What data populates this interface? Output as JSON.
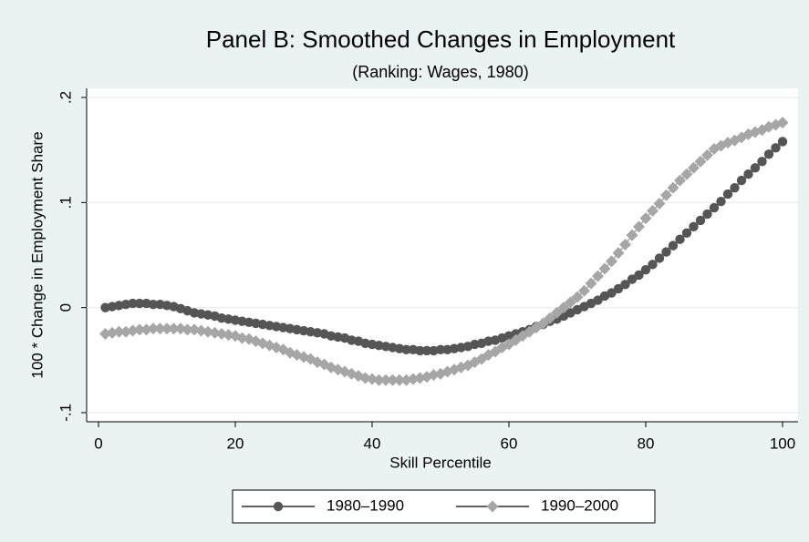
{
  "chart_data": {
    "type": "line",
    "title": "Panel B: Smoothed Changes in Employment",
    "subtitle": "(Ranking: Wages, 1980)",
    "x_label": "Skill Percentile",
    "y_label": "100 * Change in Employment Share",
    "x": [
      1,
      2,
      3,
      4,
      5,
      6,
      7,
      8,
      9,
      10,
      11,
      12,
      13,
      14,
      15,
      16,
      17,
      18,
      19,
      20,
      21,
      22,
      23,
      24,
      25,
      26,
      27,
      28,
      29,
      30,
      31,
      32,
      33,
      34,
      35,
      36,
      37,
      38,
      39,
      40,
      41,
      42,
      43,
      44,
      45,
      46,
      47,
      48,
      49,
      50,
      51,
      52,
      53,
      54,
      55,
      56,
      57,
      58,
      59,
      60,
      61,
      62,
      63,
      64,
      65,
      66,
      67,
      68,
      69,
      70,
      71,
      72,
      73,
      74,
      75,
      76,
      77,
      78,
      79,
      80,
      81,
      82,
      83,
      84,
      85,
      86,
      87,
      88,
      89,
      90,
      91,
      92,
      93,
      94,
      95,
      96,
      97,
      98,
      99,
      100
    ],
    "series": [
      {
        "name": "1980–1990",
        "color": "#555555",
        "marker": "circle",
        "values": [
          0,
          0.001,
          0.002,
          0.003,
          0.004,
          0.004,
          0.004,
          0.003,
          0.003,
          0.002,
          0.001,
          -0.001,
          -0.003,
          -0.005,
          -0.006,
          -0.007,
          -0.008,
          -0.01,
          -0.011,
          -0.012,
          -0.013,
          -0.014,
          -0.015,
          -0.016,
          -0.017,
          -0.018,
          -0.019,
          -0.02,
          -0.021,
          -0.022,
          -0.023,
          -0.024,
          -0.025,
          -0.027,
          -0.028,
          -0.029,
          -0.031,
          -0.032,
          -0.034,
          -0.035,
          -0.036,
          -0.037,
          -0.038,
          -0.039,
          -0.04,
          -0.04,
          -0.041,
          -0.041,
          -0.041,
          -0.04,
          -0.04,
          -0.039,
          -0.038,
          -0.037,
          -0.035,
          -0.034,
          -0.032,
          -0.031,
          -0.029,
          -0.027,
          -0.025,
          -0.023,
          -0.021,
          -0.018,
          -0.016,
          -0.013,
          -0.011,
          -0.008,
          -0.005,
          -0.002,
          0.001,
          0.004,
          0.007,
          0.011,
          0.014,
          0.018,
          0.022,
          0.027,
          0.031,
          0.036,
          0.041,
          0.047,
          0.053,
          0.059,
          0.065,
          0.071,
          0.077,
          0.083,
          0.089,
          0.095,
          0.101,
          0.108,
          0.114,
          0.121,
          0.127,
          0.133,
          0.139,
          0.146,
          0.152,
          0.158
        ]
      },
      {
        "name": "1990–2000",
        "color": "#a6a6a6",
        "marker": "diamond",
        "values": [
          -0.025,
          -0.024,
          -0.023,
          -0.023,
          -0.022,
          -0.021,
          -0.021,
          -0.02,
          -0.02,
          -0.02,
          -0.02,
          -0.02,
          -0.021,
          -0.021,
          -0.022,
          -0.023,
          -0.024,
          -0.025,
          -0.026,
          -0.027,
          -0.029,
          -0.03,
          -0.032,
          -0.034,
          -0.036,
          -0.038,
          -0.04,
          -0.043,
          -0.045,
          -0.047,
          -0.049,
          -0.052,
          -0.054,
          -0.057,
          -0.059,
          -0.061,
          -0.063,
          -0.065,
          -0.067,
          -0.068,
          -0.069,
          -0.069,
          -0.069,
          -0.069,
          -0.069,
          -0.068,
          -0.067,
          -0.066,
          -0.064,
          -0.063,
          -0.061,
          -0.059,
          -0.057,
          -0.055,
          -0.052,
          -0.049,
          -0.045,
          -0.042,
          -0.038,
          -0.035,
          -0.031,
          -0.027,
          -0.023,
          -0.019,
          -0.015,
          -0.01,
          -0.005,
          0.0,
          0.005,
          0.01,
          0.016,
          0.023,
          0.03,
          0.037,
          0.044,
          0.052,
          0.06,
          0.069,
          0.077,
          0.085,
          0.092,
          0.099,
          0.107,
          0.114,
          0.121,
          0.127,
          0.133,
          0.139,
          0.145,
          0.151,
          0.154,
          0.157,
          0.159,
          0.162,
          0.165,
          0.167,
          0.169,
          0.172,
          0.174,
          0.176
        ]
      }
    ],
    "xlim": [
      0,
      100
    ],
    "xticks": [
      0,
      20,
      40,
      60,
      80,
      100
    ],
    "ylim": [
      -0.1,
      0.2
    ],
    "yticks": [
      {
        "value": -0.1,
        "label": "-.1"
      },
      0,
      {
        "value": 0.1,
        "label": ".1"
      },
      {
        "value": 0.2,
        "label": ".2"
      }
    ],
    "grid": true,
    "legend": "bottom"
  }
}
